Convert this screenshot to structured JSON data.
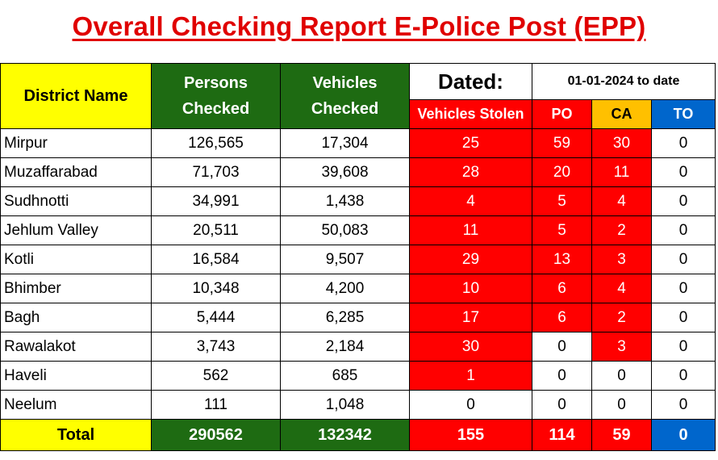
{
  "title": "Overall Checking Report E-Police Post (EPP)",
  "header": {
    "district": "District Name",
    "persons": "Persons Checked",
    "vehicles": "Vehicles Checked",
    "dated": "Dated:",
    "date_range": "01-01-2024 to date",
    "stolen": "Vehicles Stolen",
    "po": "PO",
    "ca": "CA",
    "to": "TO"
  },
  "rows": [
    {
      "district": "Mirpur",
      "persons": "126,565",
      "vehicles": "17,304",
      "stolen": "25",
      "po": "59",
      "ca": "30",
      "to": "0"
    },
    {
      "district": "Muzaffarabad",
      "persons": "71,703",
      "vehicles": "39,608",
      "stolen": "28",
      "po": "20",
      "ca": "11",
      "to": "0"
    },
    {
      "district": "Sudhnotti",
      "persons": "34,991",
      "vehicles": "1,438",
      "stolen": "4",
      "po": "5",
      "ca": "4",
      "to": "0"
    },
    {
      "district": "Jehlum Valley",
      "persons": "20,511",
      "vehicles": "50,083",
      "stolen": "11",
      "po": "5",
      "ca": "2",
      "to": "0"
    },
    {
      "district": "Kotli",
      "persons": "16,584",
      "vehicles": "9,507",
      "stolen": "29",
      "po": "13",
      "ca": "3",
      "to": "0"
    },
    {
      "district": "Bhimber",
      "persons": "10,348",
      "vehicles": "4,200",
      "stolen": "10",
      "po": "6",
      "ca": "4",
      "to": "0"
    },
    {
      "district": "Bagh",
      "persons": "5,444",
      "vehicles": "6,285",
      "stolen": "17",
      "po": "6",
      "ca": "2",
      "to": "0"
    },
    {
      "district": "Rawalakot",
      "persons": "3,743",
      "vehicles": "2,184",
      "stolen": "30",
      "po": "0",
      "ca": "3",
      "to": "0"
    },
    {
      "district": "Haveli",
      "persons": "562",
      "vehicles": "685",
      "stolen": "1",
      "po": "0",
      "ca": "0",
      "to": "0"
    },
    {
      "district": "Neelum",
      "persons": "111",
      "vehicles": "1,048",
      "stolen": "0",
      "po": "0",
      "ca": "0",
      "to": "0"
    }
  ],
  "total": {
    "label": "Total",
    "persons": "290562",
    "vehicles": "132342",
    "stolen": "155",
    "po": "114",
    "ca": "59",
    "to": "0"
  }
}
